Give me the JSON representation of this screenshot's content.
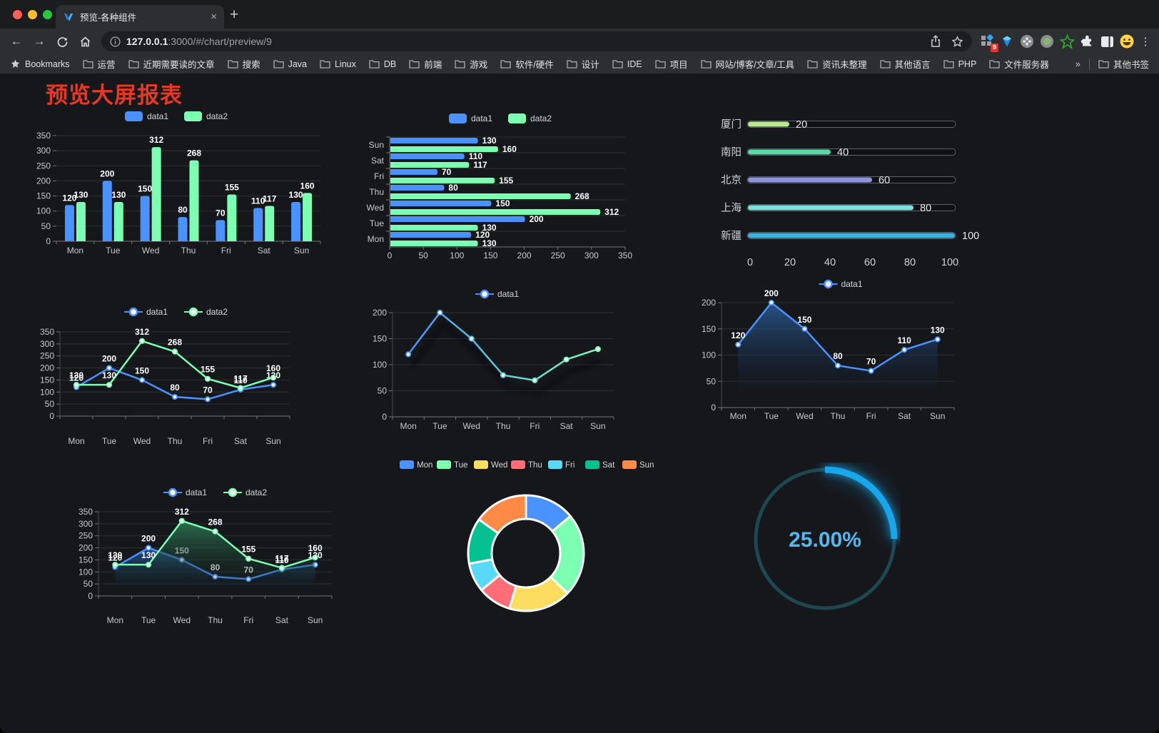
{
  "browser": {
    "traffic_lights": [
      "#ff5f57",
      "#febc2e",
      "#28c840"
    ],
    "tab": {
      "title": "预览-各种组件",
      "close": "×"
    },
    "new_tab": "+",
    "nav": {
      "back": "←",
      "forward": "→"
    },
    "url": {
      "host": "127.0.0.1",
      "rest": ":3000/#/chart/preview/9"
    },
    "extension_badge": "9",
    "menu_dots": "⋮",
    "bookmarks_bar": {
      "bookmarks_label": "Bookmarks",
      "folders": [
        "运营",
        "近期需要读的文章",
        "搜索",
        "Java",
        "Linux",
        "DB",
        "前端",
        "游戏",
        "软件/硬件",
        "设计",
        "IDE",
        "项目",
        "网站/博客/文章/工具",
        "资讯未整理",
        "其他语言",
        "PHP",
        "文件服务器"
      ],
      "overflow": "»",
      "other_bookmarks": "其他书签"
    }
  },
  "page": {
    "title": "预览大屏报表",
    "title_color": "#e63925"
  },
  "chart_data": [
    {
      "id": "grouped-bar",
      "type": "bar",
      "categories": [
        "Mon",
        "Tue",
        "Wed",
        "Thu",
        "Fri",
        "Sat",
        "Sun"
      ],
      "series": [
        {
          "name": "data1",
          "color": "#4992ff",
          "values": [
            120,
            200,
            150,
            80,
            70,
            110,
            130
          ]
        },
        {
          "name": "data2",
          "color": "#7cffb2",
          "values": [
            130,
            130,
            312,
            268,
            155,
            117,
            160
          ]
        }
      ],
      "ylim": [
        0,
        350
      ],
      "ystep": 50,
      "legend_position": "top",
      "grid": true
    },
    {
      "id": "horizontal-bar",
      "type": "bar",
      "orientation": "horizontal",
      "categories": [
        "Sun",
        "Sat",
        "Fri",
        "Thu",
        "Wed",
        "Tue",
        "Mon"
      ],
      "series": [
        {
          "name": "data1",
          "color": "#4992ff",
          "values": [
            130,
            110,
            70,
            80,
            150,
            200,
            120
          ]
        },
        {
          "name": "data2",
          "color": "#7cffb2",
          "values": [
            160,
            117,
            155,
            268,
            312,
            130,
            130
          ]
        }
      ],
      "xlim": [
        0,
        350
      ],
      "xstep": 50,
      "legend_position": "top",
      "grid": true
    },
    {
      "id": "city-progress",
      "type": "bar",
      "subtype": "progress",
      "max": 100,
      "axis_ticks": [
        0,
        20,
        40,
        60,
        80,
        100
      ],
      "items": [
        {
          "label": "厦门",
          "value": 20,
          "color": "#bde98e"
        },
        {
          "label": "南阳",
          "value": 40,
          "color": "#5ad8a6"
        },
        {
          "label": "北京",
          "value": 60,
          "color": "#8f93de"
        },
        {
          "label": "上海",
          "value": 80,
          "color": "#7ce0dd"
        },
        {
          "label": "新疆",
          "value": 100,
          "color": "#3ab2e2"
        }
      ]
    },
    {
      "id": "two-line",
      "type": "line",
      "categories": [
        "Mon",
        "Tue",
        "Wed",
        "Thu",
        "Fri",
        "Sat",
        "Sun"
      ],
      "series": [
        {
          "name": "data1",
          "color": "#4992ff",
          "values": [
            120,
            200,
            150,
            80,
            70,
            110,
            130
          ]
        },
        {
          "name": "data2",
          "color": "#7cffb2",
          "values": [
            130,
            130,
            312,
            268,
            155,
            117,
            160
          ]
        }
      ],
      "ylim": [
        0,
        350
      ],
      "ystep": 50,
      "show_labels": true,
      "legend_position": "top"
    },
    {
      "id": "gradient-line",
      "type": "line",
      "categories": [
        "Mon",
        "Tue",
        "Wed",
        "Thu",
        "Fri",
        "Sat",
        "Sun"
      ],
      "series": [
        {
          "name": "data1",
          "gradient": [
            "#4992ff",
            "#7cffb2"
          ],
          "values": [
            120,
            200,
            150,
            80,
            70,
            110,
            130
          ]
        }
      ],
      "ylim": [
        0,
        200
      ],
      "ystep": 50,
      "show_labels": false,
      "shadow": true,
      "legend_position": "top"
    },
    {
      "id": "area-line",
      "type": "area",
      "categories": [
        "Mon",
        "Tue",
        "Wed",
        "Thu",
        "Fri",
        "Sat",
        "Sun"
      ],
      "series": [
        {
          "name": "data1",
          "color": "#4992ff",
          "area": true,
          "area_fill": [
            "#2b5d9b",
            "#0c1016"
          ],
          "values": [
            120,
            200,
            150,
            80,
            70,
            110,
            130
          ]
        }
      ],
      "ylim": [
        0,
        200
      ],
      "ystep": 50,
      "show_labels": true,
      "legend_position": "top"
    },
    {
      "id": "two-area",
      "type": "area",
      "categories": [
        "Mon",
        "Tue",
        "Wed",
        "Thu",
        "Fri",
        "Sat",
        "Sun"
      ],
      "series": [
        {
          "name": "data1",
          "color": "#4992ff",
          "area": true,
          "area_fill": [
            "#275a9e",
            "#0c1016"
          ],
          "values": [
            120,
            200,
            150,
            80,
            70,
            110,
            130
          ]
        },
        {
          "name": "data2",
          "color": "#7cffb2",
          "area": true,
          "area_fill": [
            "#2f7d57",
            "#0c1016"
          ],
          "values": [
            130,
            130,
            312,
            268,
            155,
            117,
            160
          ]
        }
      ],
      "ylim": [
        0,
        350
      ],
      "ystep": 50,
      "show_labels": true,
      "legend_position": "top"
    },
    {
      "id": "week-donut",
      "type": "pie",
      "subtype": "donut",
      "categories": [
        "Mon",
        "Tue",
        "Wed",
        "Thu",
        "Fri",
        "Sat",
        "Sun"
      ],
      "values": [
        120,
        200,
        150,
        80,
        70,
        110,
        130
      ],
      "colors": [
        "#4992ff",
        "#7cffb2",
        "#fddd60",
        "#ff6e76",
        "#58d9f9",
        "#05c091",
        "#ff8a45"
      ],
      "legend_position": "top"
    },
    {
      "id": "percent-gauge",
      "type": "gauge",
      "value": 25,
      "max": 100,
      "display": "25.00%",
      "color": "#19a6ea",
      "track_color": "#1d4752"
    }
  ]
}
